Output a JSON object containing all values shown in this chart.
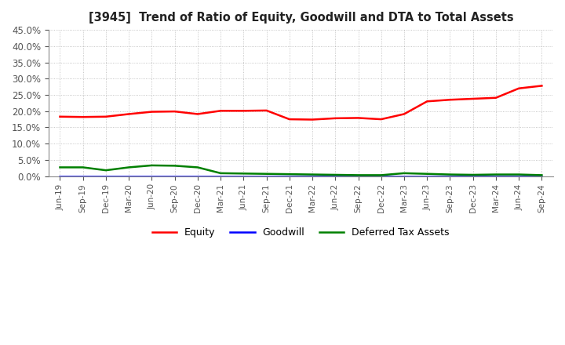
{
  "title": "[3945]  Trend of Ratio of Equity, Goodwill and DTA to Total Assets",
  "x_labels": [
    "Jun-19",
    "Sep-19",
    "Dec-19",
    "Mar-20",
    "Jun-20",
    "Sep-20",
    "Dec-20",
    "Mar-21",
    "Jun-21",
    "Sep-21",
    "Dec-21",
    "Mar-22",
    "Jun-22",
    "Sep-22",
    "Dec-22",
    "Mar-23",
    "Jun-23",
    "Sep-23",
    "Dec-23",
    "Mar-24",
    "Jun-24",
    "Sep-24"
  ],
  "equity": [
    0.183,
    0.182,
    0.183,
    0.191,
    0.198,
    0.199,
    0.191,
    0.201,
    0.201,
    0.202,
    0.175,
    0.174,
    0.178,
    0.179,
    0.175,
    0.191,
    0.23,
    0.235,
    0.238,
    0.241,
    0.27,
    0.278
  ],
  "goodwill": [
    0.0,
    0.0,
    0.0,
    0.0,
    0.0,
    0.0,
    0.0,
    0.0,
    0.0,
    0.0,
    0.0,
    0.0,
    0.0,
    0.0,
    0.0,
    0.0,
    0.0,
    0.0,
    0.0,
    0.0,
    0.0,
    0.0
  ],
  "dta": [
    0.027,
    0.027,
    0.018,
    0.027,
    0.033,
    0.032,
    0.027,
    0.009,
    0.008,
    0.007,
    0.006,
    0.005,
    0.004,
    0.003,
    0.003,
    0.009,
    0.007,
    0.005,
    0.004,
    0.005,
    0.005,
    0.003
  ],
  "equity_color": "#FF0000",
  "goodwill_color": "#0000FF",
  "dta_color": "#008000",
  "ylim": [
    0.0,
    0.45
  ],
  "yticks": [
    0.0,
    0.05,
    0.1,
    0.15,
    0.2,
    0.25,
    0.3,
    0.35,
    0.4,
    0.45
  ],
  "legend_labels": [
    "Equity",
    "Goodwill",
    "Deferred Tax Assets"
  ],
  "background_color": "#FFFFFF",
  "grid_color": "#999999"
}
